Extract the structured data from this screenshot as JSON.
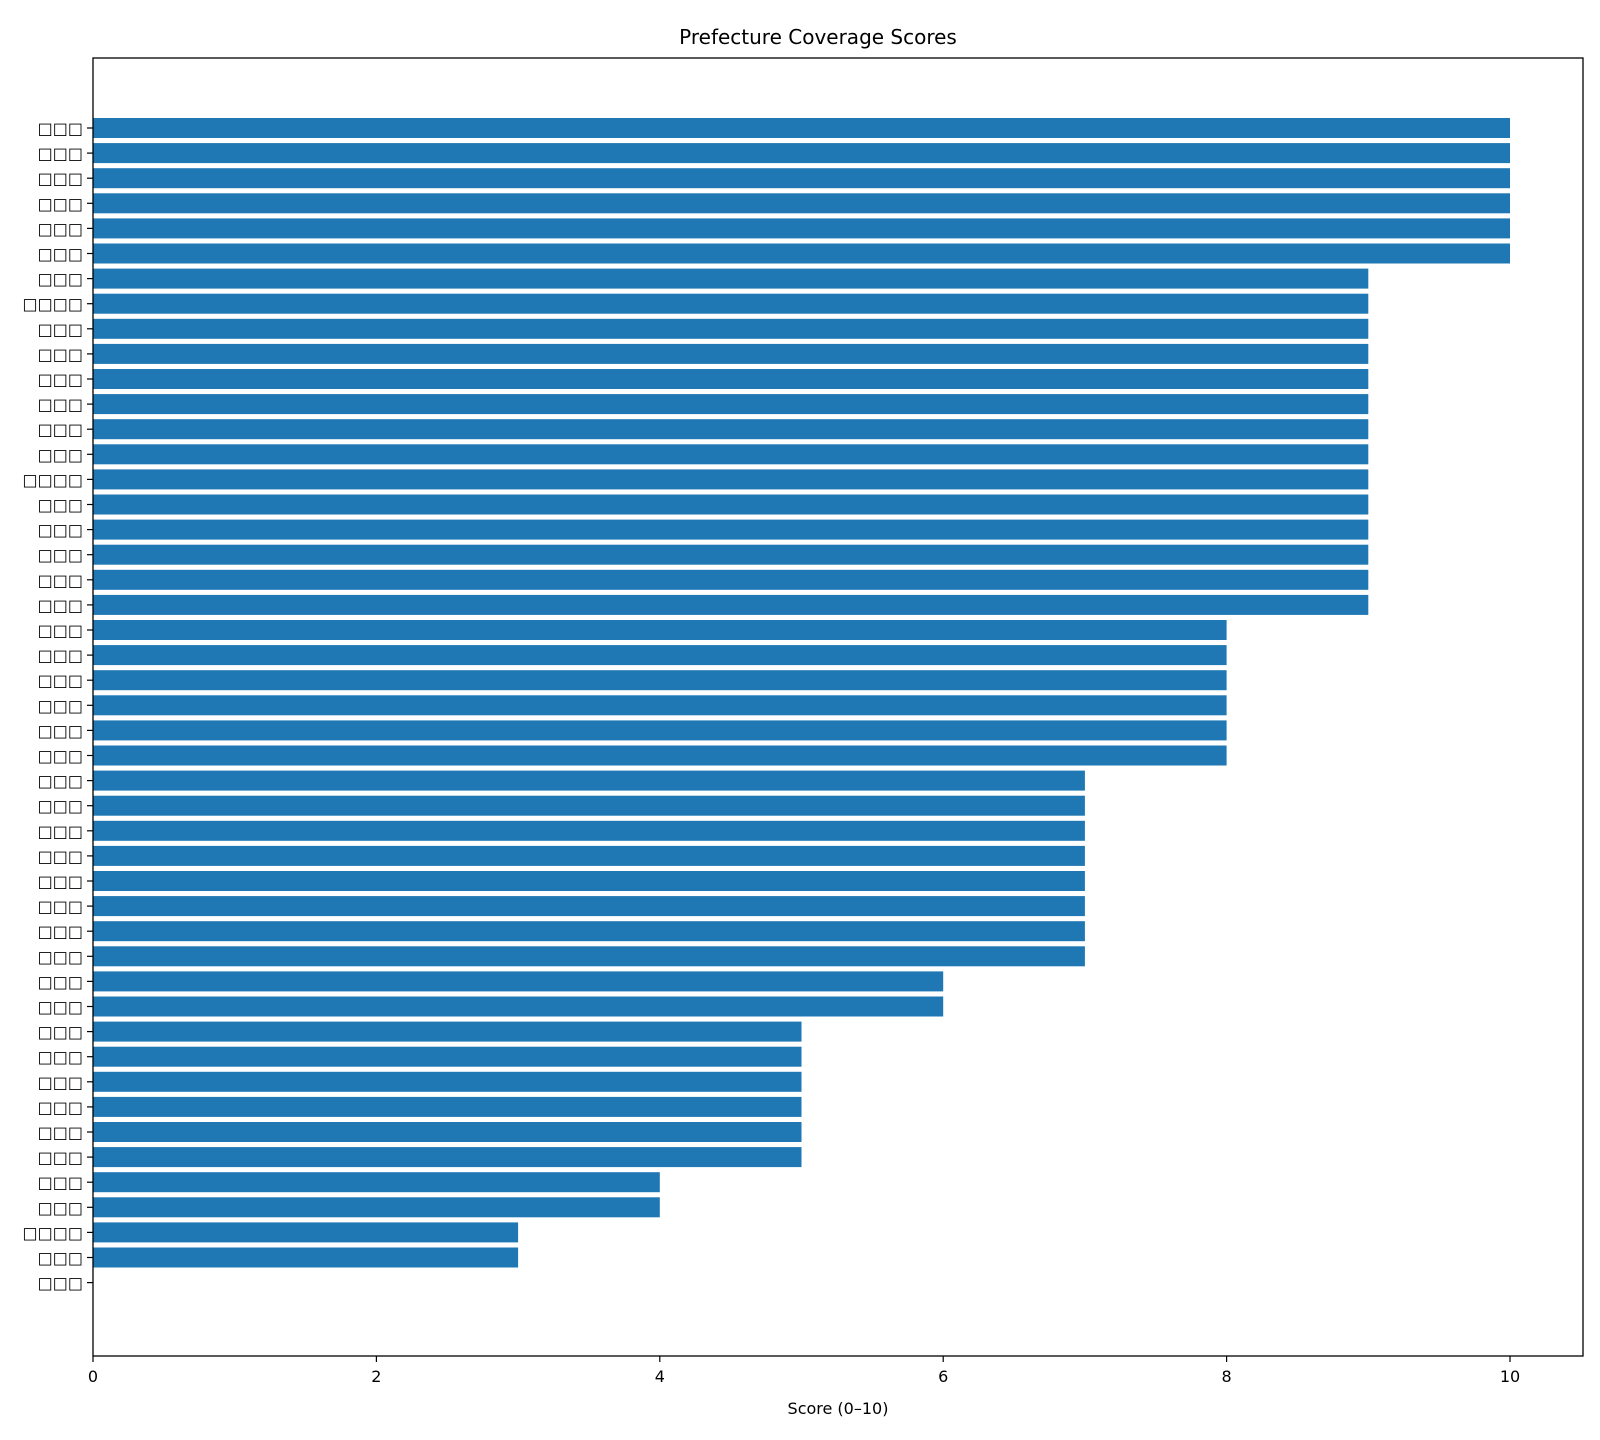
{
  "chart_data": {
    "type": "bar",
    "orientation": "horizontal",
    "title": "Prefecture Coverage Scores",
    "xlabel": "Score (0–10)",
    "ylabel": "",
    "xlim": [
      0,
      10.5
    ],
    "xticks": [
      0,
      2,
      4,
      6,
      8,
      10
    ],
    "grid": false,
    "legend": "none",
    "bar_color": "#1f77b4",
    "categories": [
      "□□□",
      "□□□",
      "□□□",
      "□□□",
      "□□□",
      "□□□",
      "□□□",
      "□□□□",
      "□□□",
      "□□□",
      "□□□",
      "□□□",
      "□□□",
      "□□□",
      "□□□□",
      "□□□",
      "□□□",
      "□□□",
      "□□□",
      "□□□",
      "□□□",
      "□□□",
      "□□□",
      "□□□",
      "□□□",
      "□□□",
      "□□□",
      "□□□",
      "□□□",
      "□□□",
      "□□□",
      "□□□",
      "□□□",
      "□□□",
      "□□□",
      "□□□",
      "□□□",
      "□□□",
      "□□□",
      "□□□",
      "□□□",
      "□□□",
      "□□□",
      "□□□",
      "□□□□",
      "□□□",
      "□□□"
    ],
    "values": [
      10,
      10,
      10,
      10,
      10,
      10,
      9,
      9,
      9,
      9,
      9,
      9,
      9,
      9,
      9,
      9,
      9,
      9,
      9,
      9,
      8,
      8,
      8,
      8,
      8,
      8,
      7,
      7,
      7,
      7,
      7,
      7,
      7,
      7,
      6,
      6,
      5,
      5,
      5,
      5,
      5,
      5,
      4,
      4,
      3,
      3,
      0
    ]
  }
}
